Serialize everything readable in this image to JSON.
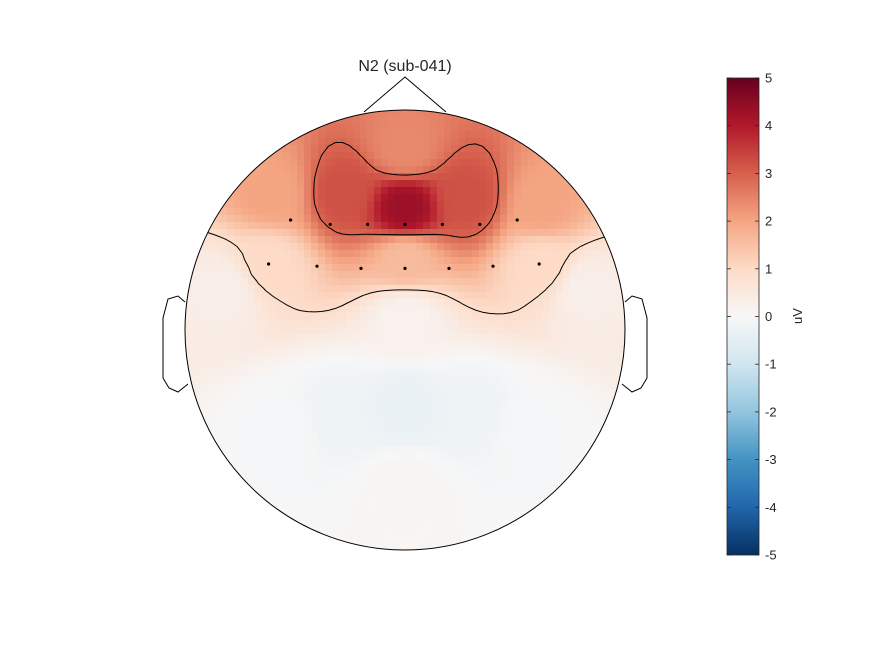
{
  "chart_data": {
    "type": "heatmap",
    "title": "N2 (sub-041)",
    "colorbar": {
      "label": "uV",
      "limits": [
        -5,
        5
      ],
      "ticks": [
        5,
        4,
        3,
        2,
        1,
        0,
        -1,
        -2,
        -3,
        -4,
        -5
      ],
      "tick_labels": [
        "5",
        "4",
        "3",
        "2",
        "1",
        "0",
        "-1",
        "-2",
        "-3",
        "-4",
        "-5"
      ],
      "colormap": [
        "#053061",
        "#2166ac",
        "#4393c3",
        "#92c5de",
        "#d1e5f0",
        "#f7f7f7",
        "#fddbc7",
        "#f4a582",
        "#d6604d",
        "#b2182b",
        "#67001f"
      ]
    },
    "sources": [
      {
        "x": 0.0,
        "y": 0.55,
        "value": 4.3
      },
      {
        "x": -0.28,
        "y": 0.62,
        "value": 3.2
      },
      {
        "x": 0.28,
        "y": 0.6,
        "value": 3.2
      },
      {
        "x": -0.6,
        "y": 0.62,
        "value": 2.0
      },
      {
        "x": 0.62,
        "y": 0.56,
        "value": 2.0
      },
      {
        "x": 0.0,
        "y": 0.82,
        "value": 2.4
      },
      {
        "x": -0.62,
        "y": 0.3,
        "value": 1.0
      },
      {
        "x": 0.62,
        "y": 0.3,
        "value": 1.0
      },
      {
        "x": 0.0,
        "y": 0.32,
        "value": 1.6
      },
      {
        "x": -0.82,
        "y": 0.18,
        "value": 0.3
      },
      {
        "x": 0.82,
        "y": 0.18,
        "value": 0.3
      },
      {
        "x": 0.0,
        "y": -0.35,
        "value": -0.35
      },
      {
        "x": -0.3,
        "y": -0.38,
        "value": -0.25
      },
      {
        "x": 0.3,
        "y": -0.38,
        "value": -0.25
      },
      {
        "x": 0.0,
        "y": -0.72,
        "value": 0.1
      },
      {
        "x": -0.55,
        "y": -0.45,
        "value": -0.05
      },
      {
        "x": 0.55,
        "y": -0.45,
        "value": -0.05
      },
      {
        "x": 0.0,
        "y": 0.05,
        "value": 0.2
      }
    ],
    "contour_levels": [
      -0.9,
      0.9,
      2.9
    ],
    "electrodes": [
      {
        "x": -0.52,
        "y": 0.5
      },
      {
        "x": -0.34,
        "y": 0.48
      },
      {
        "x": -0.17,
        "y": 0.48
      },
      {
        "x": 0.0,
        "y": 0.48
      },
      {
        "x": 0.17,
        "y": 0.48
      },
      {
        "x": 0.34,
        "y": 0.48
      },
      {
        "x": 0.51,
        "y": 0.5
      },
      {
        "x": -0.62,
        "y": 0.3
      },
      {
        "x": -0.4,
        "y": 0.29
      },
      {
        "x": -0.2,
        "y": 0.28
      },
      {
        "x": 0.0,
        "y": 0.28
      },
      {
        "x": 0.2,
        "y": 0.28
      },
      {
        "x": 0.4,
        "y": 0.29
      },
      {
        "x": 0.61,
        "y": 0.3
      }
    ]
  }
}
